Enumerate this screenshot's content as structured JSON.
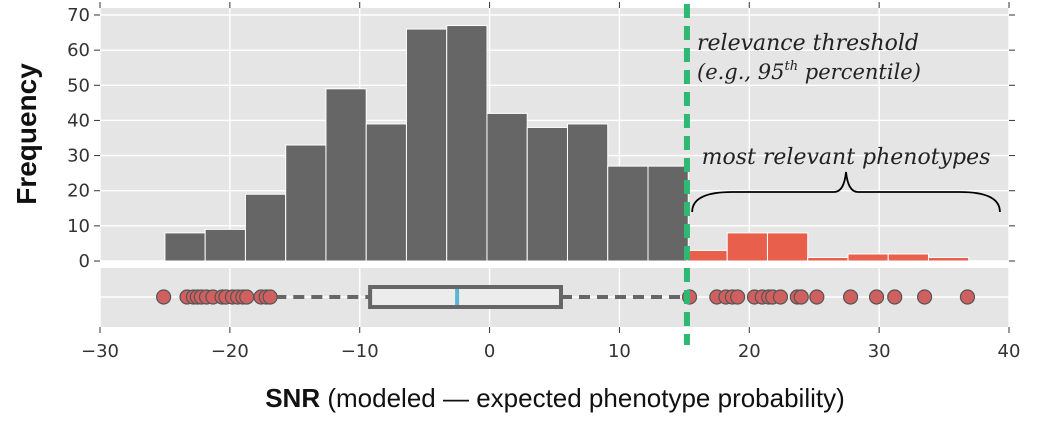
{
  "chart_data": [
    {
      "type": "bar",
      "panel": "histogram",
      "ylabel": "Frequency",
      "xlim": [
        -30,
        40
      ],
      "ylim": [
        0,
        70
      ],
      "yticks": [
        0,
        10,
        20,
        30,
        40,
        50,
        60,
        70
      ],
      "bin_width": 3.1,
      "series": [
        {
          "name": "",
          "color": "#666666",
          "bins": [
            {
              "x0": -25.0,
              "count": 8
            },
            {
              "x0": -21.9,
              "count": 9
            },
            {
              "x0": -18.8,
              "count": 19
            },
            {
              "x0": -15.7,
              "count": 33
            },
            {
              "x0": -12.6,
              "count": 49
            },
            {
              "x0": -9.5,
              "count": 39
            },
            {
              "x0": -6.4,
              "count": 66
            },
            {
              "x0": -3.3,
              "count": 67
            },
            {
              "x0": -0.2,
              "count": 42
            },
            {
              "x0": 2.9,
              "count": 38
            },
            {
              "x0": 6.0,
              "count": 39
            },
            {
              "x0": 9.1,
              "count": 27
            },
            {
              "x0": 12.2,
              "count": 27
            }
          ]
        },
        {
          "name": "",
          "color": "#e8604c",
          "bins": [
            {
              "x0": 15.2,
              "count": 3
            },
            {
              "x0": 18.3,
              "count": 8
            },
            {
              "x0": 21.4,
              "count": 8
            },
            {
              "x0": 24.5,
              "count": 1
            },
            {
              "x0": 27.6,
              "count": 2
            },
            {
              "x0": 30.7,
              "count": 2
            },
            {
              "x0": 33.8,
              "count": 1
            }
          ]
        }
      ],
      "grid": true
    },
    {
      "type": "scatter",
      "panel": "boxplot",
      "xlabel_prefix": "SNR",
      "xlabel_rest": " (modeled — expected phenotype probability)",
      "xlim": [
        -30,
        40
      ],
      "xticks": [
        -30,
        -20,
        -10,
        0,
        10,
        20,
        30,
        40
      ],
      "box": {
        "q1": -9.2,
        "median": -2.5,
        "q3": 5.5,
        "whisker_low": -16.5,
        "whisker_high": 15.2,
        "median_color": "#5bb5d5"
      },
      "outliers": [
        -25.1,
        -23.3,
        -22.8,
        -22.5,
        -22.2,
        -21.8,
        -21.3,
        -20.6,
        -20.3,
        -19.8,
        -19.4,
        -19.0,
        -18.7,
        -17.6,
        -17.2,
        -16.9,
        15.4,
        17.5,
        18.2,
        18.7,
        19.1,
        20.4,
        21.0,
        21.5,
        21.8,
        22.4,
        23.7,
        24.0,
        25.2,
        27.8,
        29.8,
        31.2,
        33.5,
        36.8
      ],
      "outlier_color": "#d06060",
      "grid": true
    }
  ],
  "threshold": {
    "x": 15.2,
    "color": "#2eb872",
    "label_line1": "relevance threshold",
    "label_line2_prefix": "(e.g., 95",
    "label_line2_sup": "th",
    "label_line2_suffix": " percentile)"
  },
  "brace": {
    "x_start": 15.6,
    "x_end": 39.3,
    "label": "most relevant phenotypes"
  }
}
